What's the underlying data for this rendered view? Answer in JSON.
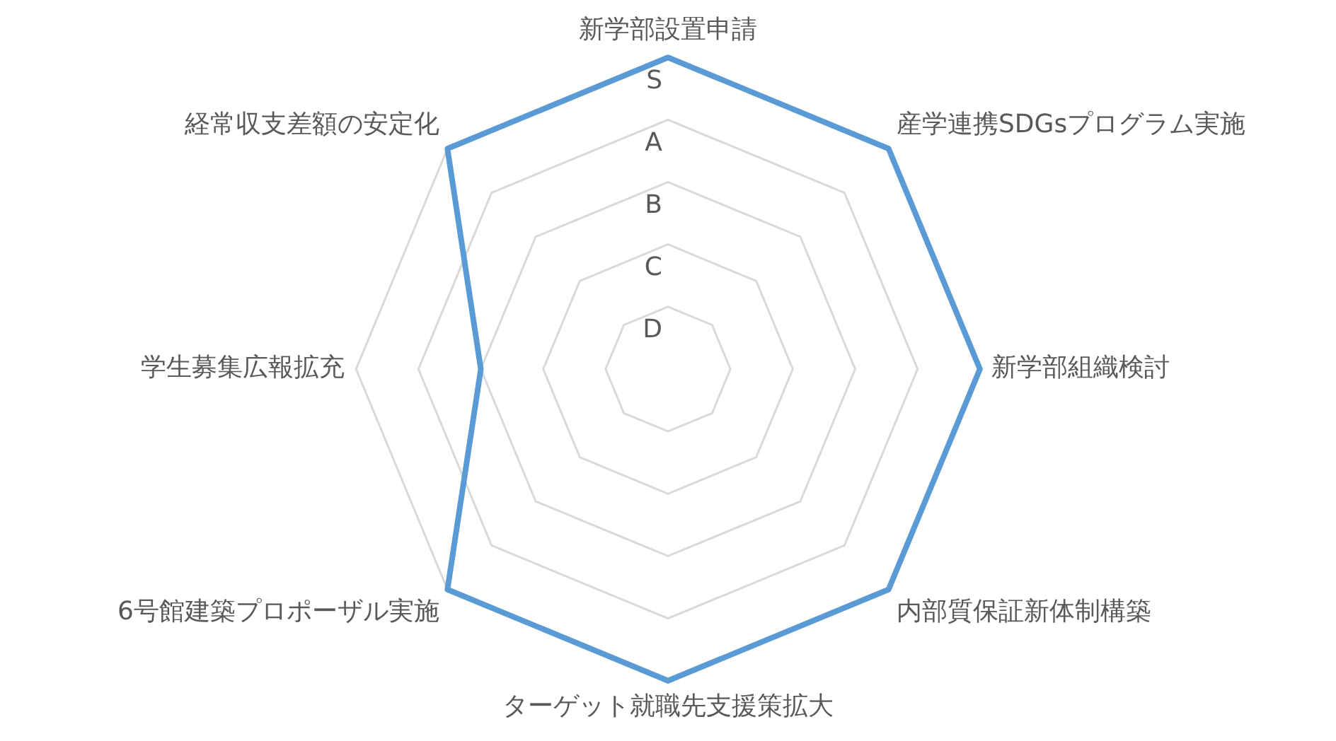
{
  "chart_data": {
    "type": "radar",
    "categories": [
      "新学部設置申請",
      "産学連携SDGsプログラム実施",
      "新学部組織検討",
      "内部質保証新体制構築",
      "ターゲット就職先支援策拡大",
      "6号館建築プロポーザル実施",
      "学生募集広報拡充",
      "経常収支差額の安定化"
    ],
    "series": [
      {
        "color": "#5b9bd5",
        "values": [
          5,
          5,
          5,
          5,
          5,
          5,
          3,
          5
        ]
      }
    ],
    "ylim": [
      0,
      5
    ],
    "yticks": [
      {
        "value": 1,
        "label": "D"
      },
      {
        "value": 2,
        "label": "C"
      },
      {
        "value": 3,
        "label": "B"
      },
      {
        "value": 4,
        "label": "A"
      },
      {
        "value": 5,
        "label": "S"
      }
    ],
    "grid": true,
    "legend": false,
    "marker": "none",
    "line_style": "solid"
  }
}
